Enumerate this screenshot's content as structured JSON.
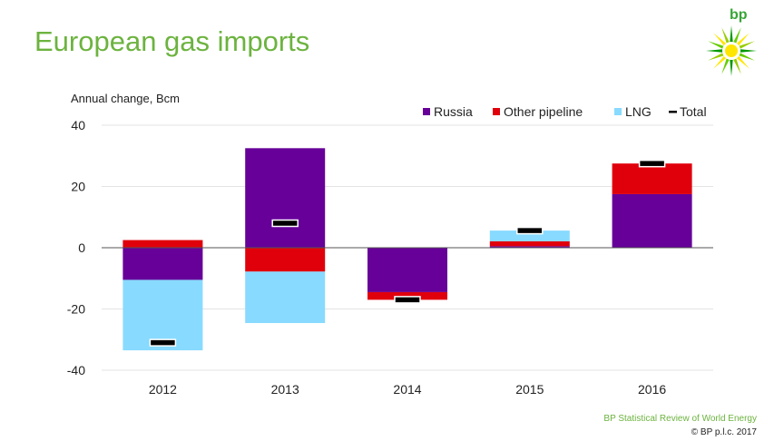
{
  "page": {
    "title": "European gas imports",
    "logo_text": "bp",
    "footer_source": "BP Statistical Review of World Energy",
    "footer_copyright": "© BP p.l.c. 2017"
  },
  "colors": {
    "title": "#6cb33f",
    "russia": "#660099",
    "other_pipeline": "#e0000c",
    "lng": "#88daff",
    "total": "#000000"
  },
  "chart_data": {
    "type": "bar",
    "stacked": true,
    "title": "European gas imports",
    "ylabel": "Annual change, Bcm",
    "xlabel": "",
    "categories": [
      "2012",
      "2013",
      "2014",
      "2015",
      "2016"
    ],
    "ylim": [
      -40,
      40
    ],
    "yticks": [
      40,
      20,
      0,
      -20,
      -40
    ],
    "grid": true,
    "legend_position": "top-right",
    "series": [
      {
        "name": "Russia",
        "values": [
          -10.5,
          32.5,
          -14.5,
          0.5,
          17.5
        ]
      },
      {
        "name": "Other pipeline",
        "values": [
          2.5,
          -7.8,
          -2.5,
          1.6,
          10.0
        ]
      },
      {
        "name": "LNG",
        "values": [
          -23.0,
          -16.8,
          0,
          3.5,
          0
        ]
      }
    ],
    "total": {
      "name": "Total",
      "values": [
        -31.0,
        8.0,
        -17.0,
        5.6,
        27.5
      ]
    }
  }
}
